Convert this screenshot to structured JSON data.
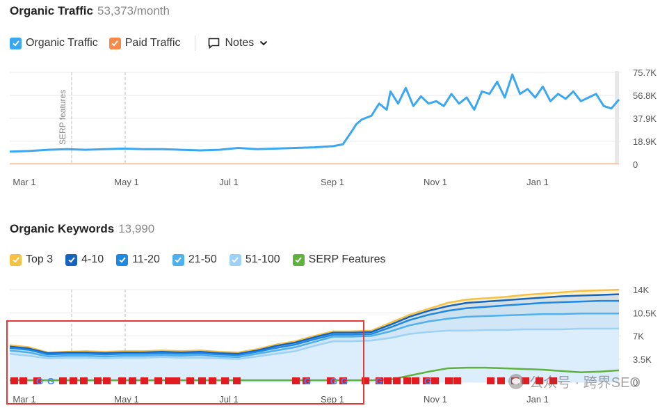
{
  "traffic": {
    "title": "Organic Traffic",
    "metric": "53,373/month",
    "legend": [
      {
        "label": "Organic Traffic",
        "color": "#3ba7f0",
        "checked": true
      },
      {
        "label": "Paid Traffic",
        "color": "#f58a4b",
        "checked": true
      }
    ],
    "notes_label": "Notes",
    "annotation_label": "SERP features"
  },
  "keywords": {
    "title": "Organic Keywords",
    "metric": "13,990",
    "legend": [
      {
        "label": "Top 3",
        "color": "#f6c142"
      },
      {
        "label": "4-10",
        "color": "#1565c0"
      },
      {
        "label": "11-20",
        "color": "#1e88e5"
      },
      {
        "label": "21-50",
        "color": "#4fb0ef"
      },
      {
        "label": "51-100",
        "color": "#9dd2f6"
      },
      {
        "label": "SERP Features",
        "color": "#5db33b"
      }
    ]
  },
  "watermark": "公众号 · 跨界SEO",
  "chart_data": [
    {
      "type": "line",
      "title": "Organic Traffic",
      "x_ticks": [
        "Mar 1",
        "May 1",
        "Jul 1",
        "Sep 1",
        "Nov 1",
        "Jan 1"
      ],
      "y_ticks": [
        "75.7K",
        "56.8K",
        "37.9K",
        "18.9K",
        "0"
      ],
      "ylim": [
        0,
        75700
      ],
      "series": [
        {
          "name": "Organic Traffic",
          "color": "#3ba7f0",
          "x": [
            0,
            10,
            20,
            30,
            40,
            50,
            60,
            70,
            80,
            90,
            100,
            110,
            120,
            130,
            140,
            150,
            160,
            170,
            175,
            180,
            182,
            185,
            190,
            194,
            198,
            200,
            204,
            208,
            212,
            216,
            220,
            224,
            228,
            232,
            236,
            240,
            244,
            248,
            252,
            256,
            260,
            264,
            268,
            272,
            276,
            280,
            284,
            288,
            292,
            296,
            300,
            304,
            308,
            312,
            316,
            320
          ],
          "y": [
            10500,
            11000,
            12000,
            12500,
            12000,
            12500,
            13000,
            12500,
            12500,
            12000,
            11500,
            12000,
            13500,
            12500,
            13000,
            13500,
            14000,
            15000,
            16500,
            28000,
            33000,
            37000,
            40000,
            50000,
            45000,
            60000,
            50000,
            63000,
            48000,
            56000,
            50000,
            52000,
            48000,
            58000,
            50000,
            55000,
            45000,
            60000,
            58000,
            68000,
            55000,
            74000,
            58000,
            62000,
            55000,
            64000,
            52000,
            58000,
            54000,
            60000,
            52000,
            55000,
            58000,
            48000,
            46000,
            53373
          ]
        },
        {
          "name": "Paid Traffic",
          "color": "#f58a4b",
          "x": [
            0,
            320
          ],
          "y": [
            500,
            500
          ]
        }
      ]
    },
    {
      "type": "area",
      "title": "Organic Keywords",
      "x_ticks": [
        "Mar 1",
        "May 1",
        "Jul 1",
        "Sep 1",
        "Nov 1",
        "Jan 1"
      ],
      "y_ticks": [
        "14K",
        "10.5K",
        "7K",
        "3.5K",
        "0"
      ],
      "ylim": [
        0,
        14000
      ],
      "x": [
        0,
        10,
        20,
        30,
        40,
        50,
        60,
        70,
        80,
        90,
        100,
        110,
        120,
        130,
        140,
        150,
        160,
        170,
        180,
        190,
        200,
        210,
        220,
        230,
        240,
        250,
        260,
        270,
        280,
        290,
        300,
        310,
        320
      ],
      "series": [
        {
          "name": "Top 3",
          "color": "#f6c142",
          "values": [
            5600,
            5300,
            4500,
            4600,
            4700,
            4600,
            4700,
            4700,
            4800,
            4700,
            4800,
            4600,
            4500,
            5000,
            5700,
            6200,
            7000,
            7700,
            7700,
            7800,
            9000,
            10200,
            11100,
            12000,
            12500,
            12700,
            12900,
            13200,
            13400,
            13600,
            13800,
            13900,
            13990
          ]
        },
        {
          "name": "4-10",
          "color": "#1565c0",
          "values": [
            5400,
            5100,
            4400,
            4500,
            4500,
            4400,
            4500,
            4500,
            4600,
            4500,
            4600,
            4400,
            4300,
            4800,
            5500,
            6000,
            6800,
            7500,
            7500,
            7600,
            8700,
            9900,
            10800,
            11500,
            12000,
            12200,
            12400,
            12600,
            12800,
            13000,
            13100,
            13200,
            13300
          ]
        },
        {
          "name": "11-20",
          "color": "#1e88e5",
          "values": [
            5200,
            4900,
            4200,
            4300,
            4300,
            4200,
            4300,
            4300,
            4400,
            4300,
            4400,
            4200,
            4100,
            4600,
            5200,
            5700,
            6500,
            7200,
            7200,
            7300,
            8300,
            9400,
            10200,
            10800,
            11200,
            11400,
            11600,
            11800,
            12000,
            12100,
            12200,
            12300,
            12300
          ]
        },
        {
          "name": "21-50",
          "color": "#4fb0ef",
          "values": [
            4800,
            4500,
            3900,
            4000,
            4000,
            3900,
            4000,
            4000,
            4100,
            4000,
            4100,
            3900,
            3800,
            4300,
            4800,
            5300,
            6100,
            6900,
            6900,
            7000,
            7700,
            8600,
            9200,
            9600,
            9900,
            10000,
            10100,
            10200,
            10300,
            10300,
            10400,
            10400,
            10400
          ]
        },
        {
          "name": "51-100",
          "color": "#9dd2f6",
          "values": [
            4300,
            4000,
            3600,
            3700,
            3700,
            3600,
            3700,
            3700,
            3800,
            3700,
            3700,
            3600,
            3500,
            3900,
            4300,
            4700,
            5500,
            6200,
            6200,
            6300,
            6700,
            7300,
            7600,
            7800,
            7800,
            7900,
            7900,
            8000,
            8000,
            8000,
            8100,
            8100,
            8100
          ]
        },
        {
          "name": "SERP Features",
          "color": "#5db33b",
          "values": [
            300,
            300,
            300,
            300,
            300,
            300,
            300,
            300,
            300,
            300,
            300,
            300,
            300,
            300,
            300,
            300,
            300,
            300,
            300,
            300,
            400,
            1000,
            1600,
            2100,
            2200,
            2200,
            2100,
            2000,
            1900,
            1700,
            1500,
            1600,
            1800
          ]
        }
      ]
    }
  ]
}
